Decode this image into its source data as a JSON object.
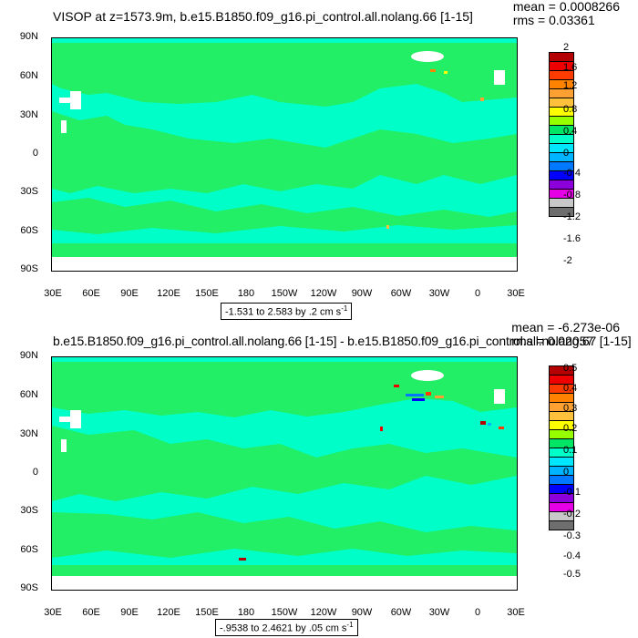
{
  "panels": [
    {
      "title": "VISOP at z=1573.9m, b.e15.B1850.f09_g16.pi_control.all.nolang.66 [1-15]",
      "mean": "mean = 0.0008266",
      "rms": "rms = 0.03361",
      "range_label": "-1.531 to 2.583 by .2 cm s",
      "range_sup": "-1",
      "y_ticks": [
        "90N",
        "60N",
        "30N",
        "0",
        "30S",
        "60S",
        "90S"
      ],
      "x_ticks": [
        "30E",
        "60E",
        "90E",
        "120E",
        "150E",
        "180",
        "150W",
        "120W",
        "90W",
        "60W",
        "30W",
        "0",
        "30E"
      ],
      "colorbar_labels": [
        "2",
        "1.6",
        "1.2",
        "0.8",
        "0.4",
        "0",
        "-0.4",
        "-0.8",
        "-1.2",
        "-1.6",
        "-2"
      ]
    },
    {
      "title": "b.e15.B1850.f09_g16.pi_control.all.nolang.66 [1-15] - b.e15.B1850.f09_g16.pi_control.all.nolang.67 [1-15]",
      "mean": "mean = -6.273e-06",
      "rms": "rms = 0.02057",
      "range_label": "-.9538 to 2.4621 by .05 cm s",
      "range_sup": "-1",
      "y_ticks": [
        "90N",
        "60N",
        "30N",
        "0",
        "30S",
        "60S",
        "90S"
      ],
      "x_ticks": [
        "30E",
        "60E",
        "90E",
        "120E",
        "150E",
        "180",
        "150W",
        "120W",
        "90W",
        "60W",
        "30W",
        "0",
        "30E"
      ],
      "colorbar_labels": [
        "0.5",
        "0.4",
        "0.3",
        "0.2",
        "0.1",
        "0",
        "-0.1",
        "-0.2",
        "-0.3",
        "-0.4",
        "-0.5"
      ]
    }
  ],
  "colorbar_colors": [
    "#b40000",
    "#ee0000",
    "#ff3c00",
    "#ff8200",
    "#ffa032",
    "#ffc03c",
    "#ffff00",
    "#96ff00",
    "#00e664",
    "#00ffc8",
    "#00e6ff",
    "#00b4ff",
    "#0078ff",
    "#0000ff",
    "#8c00dc",
    "#e600e6",
    "#c8c8c8",
    "#6e6e6e"
  ],
  "map_colors": {
    "background": "#00ffc8",
    "anomaly": "#22ee66"
  }
}
